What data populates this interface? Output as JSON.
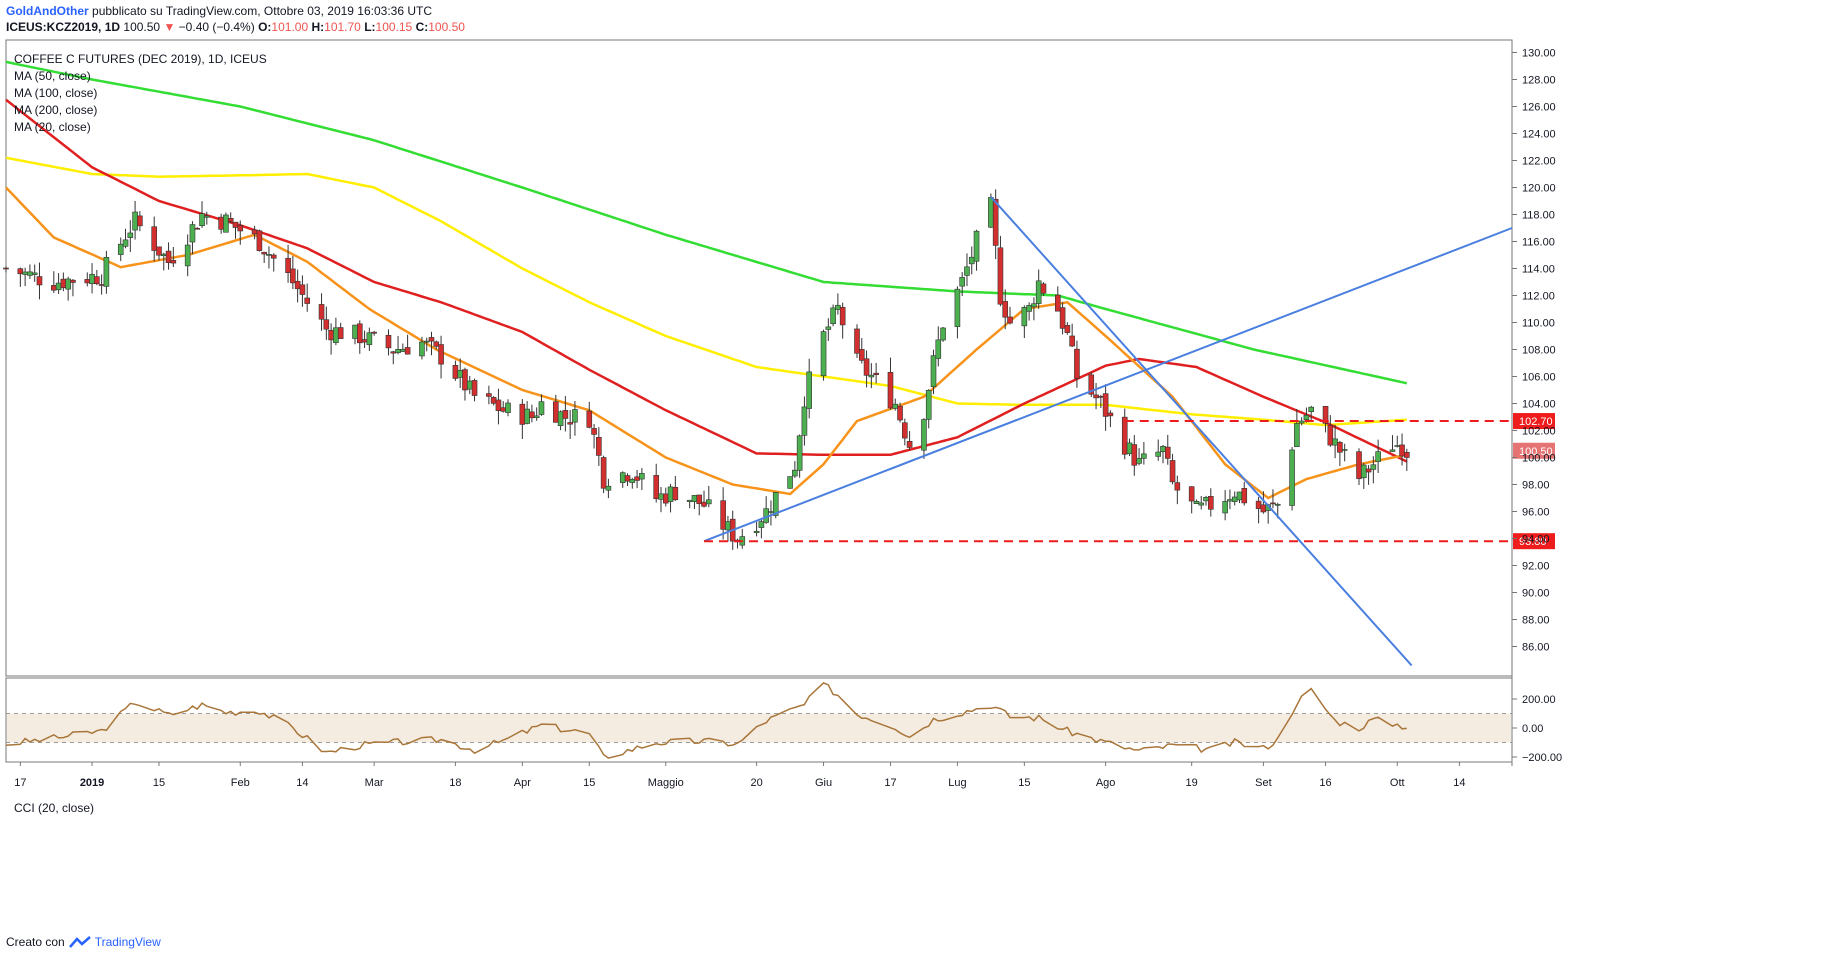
{
  "header": {
    "author": "GoldAndOther",
    "published": "pubblicato su TradingView.com, Ottobre 03, 2019 16:03:36 UTC",
    "symbol": "ICEUS:KCZ2019, 1D",
    "last": "100.50",
    "change_arrow": "▼",
    "change": "−0.40 (−0.4%)",
    "o_label": "O:",
    "o_val": "101.00",
    "h_label": "H:",
    "h_val": "101.70",
    "l_label": "L:",
    "l_val": "100.15",
    "c_label": "C:",
    "c_val": "100.50"
  },
  "legend": {
    "title": "COFFEE C FUTURES (DEC 2019), 1D, ICEUS",
    "ma50": "MA (50, close)",
    "ma100": "MA (100, close)",
    "ma200": "MA (200, close)",
    "ma20": "MA (20, close)",
    "cci": "CCI (20, close)"
  },
  "footer": {
    "created_with": "Creato con",
    "brand": "TradingView"
  },
  "colors": {
    "up": "#4caf50",
    "down": "#d32f2f",
    "ma20": "#f7931a",
    "ma50": "#e02020",
    "ma100": "#ffee00",
    "ma200": "#33dd33",
    "trend": "#4a7fe0",
    "level": "#ee1c1c",
    "cci": "#a9763a"
  },
  "chart_data": [
    {
      "type": "candlestick",
      "title": "COFFEE C FUTURES (DEC 2019), 1D, ICEUS",
      "ylim": [
        84.6,
        131.0
      ],
      "y_ticks": [
        "130.00",
        "128.00",
        "126.00",
        "124.00",
        "122.00",
        "120.00",
        "118.00",
        "116.00",
        "114.00",
        "112.00",
        "110.00",
        "108.00",
        "106.00",
        "104.00",
        "102.00",
        "100.00",
        "98.00",
        "96.00",
        "94.00",
        "92.00",
        "90.00",
        "88.00",
        "86.00"
      ],
      "x_labels": [
        "17",
        "2019",
        "15",
        "Feb",
        "14",
        "Mar",
        "18",
        "Apr",
        "15",
        "Maggio",
        "20",
        "Giu",
        "17",
        "Lug",
        "15",
        "Ago",
        "19",
        "Set",
        "16",
        "Ott",
        "14"
      ],
      "x_label_dates": [
        "2018-12-17",
        "2019-01-01",
        "2019-01-15",
        "2019-02-01",
        "2019-02-14",
        "2019-03-01",
        "2019-03-18",
        "2019-04-01",
        "2019-04-15",
        "2019-05-01",
        "2019-05-20",
        "2019-06-03",
        "2019-06-17",
        "2019-07-01",
        "2019-07-15",
        "2019-08-01",
        "2019-08-19",
        "2019-09-03",
        "2019-09-16",
        "2019-10-01",
        "2019-10-14"
      ],
      "price_labels": [
        {
          "value": 102.7,
          "text": "102.70",
          "color": "#ee1c1c"
        },
        {
          "value": 100.5,
          "text": "100.50",
          "color": "#e57373"
        },
        {
          "value": 93.8,
          "text": "93.80",
          "color": "#ee1c1c"
        }
      ],
      "close_anchors": [
        [
          "2018-12-14",
          114.0
        ],
        [
          "2018-12-24",
          113.0
        ],
        [
          "2019-01-03",
          113.5
        ],
        [
          "2019-01-08",
          116.5
        ],
        [
          "2019-01-10",
          117.5
        ],
        [
          "2019-01-17",
          114.5
        ],
        [
          "2019-01-24",
          118.0
        ],
        [
          "2019-01-29",
          117.5
        ],
        [
          "2019-02-05",
          116.0
        ],
        [
          "2019-02-12",
          113.0
        ],
        [
          "2019-02-19",
          109.5
        ],
        [
          "2019-02-26",
          109.0
        ],
        [
          "2019-03-05",
          108.0
        ],
        [
          "2019-03-11",
          108.5
        ],
        [
          "2019-03-15",
          107.5
        ],
        [
          "2019-03-22",
          104.5
        ],
        [
          "2019-03-28",
          103.5
        ],
        [
          "2019-04-03",
          103.0
        ],
        [
          "2019-04-05",
          104.0
        ],
        [
          "2019-04-10",
          103.0
        ],
        [
          "2019-04-15",
          103.0
        ],
        [
          "2019-04-18",
          98.5
        ],
        [
          "2019-04-24",
          99.0
        ],
        [
          "2019-04-29",
          97.0
        ],
        [
          "2019-05-03",
          97.5
        ],
        [
          "2019-05-09",
          96.5
        ],
        [
          "2019-05-13",
          95.0
        ],
        [
          "2019-05-16",
          94.0
        ],
        [
          "2019-05-22",
          96.0
        ],
        [
          "2019-05-28",
          99.5
        ],
        [
          "2019-05-30",
          104.5
        ],
        [
          "2019-06-03",
          109.0
        ],
        [
          "2019-06-06",
          111.0
        ],
        [
          "2019-06-10",
          107.0
        ],
        [
          "2019-06-13",
          106.0
        ],
        [
          "2019-06-18",
          104.0
        ],
        [
          "2019-06-21",
          101.0
        ],
        [
          "2019-06-24",
          103.5
        ],
        [
          "2019-06-26",
          107.0
        ],
        [
          "2019-06-28",
          110.0
        ],
        [
          "2019-07-02",
          113.0
        ],
        [
          "2019-07-05",
          116.0
        ],
        [
          "2019-07-08",
          118.5
        ],
        [
          "2019-07-10",
          112.0
        ],
        [
          "2019-07-12",
          110.0
        ],
        [
          "2019-07-16",
          111.0
        ],
        [
          "2019-07-18",
          113.0
        ],
        [
          "2019-07-22",
          111.0
        ],
        [
          "2019-07-24",
          109.0
        ],
        [
          "2019-07-26",
          106.0
        ],
        [
          "2019-07-31",
          104.0
        ],
        [
          "2019-08-05",
          101.0
        ],
        [
          "2019-08-08",
          99.5
        ],
        [
          "2019-08-13",
          100.5
        ],
        [
          "2019-08-15",
          98.0
        ],
        [
          "2019-08-20",
          96.0
        ],
        [
          "2019-08-23",
          96.5
        ],
        [
          "2019-08-28",
          97.5
        ],
        [
          "2019-09-03",
          96.0
        ],
        [
          "2019-09-06",
          96.5
        ],
        [
          "2019-09-10",
          102.5
        ],
        [
          "2019-09-13",
          103.5
        ],
        [
          "2019-09-18",
          101.0
        ],
        [
          "2019-09-23",
          98.5
        ],
        [
          "2019-09-26",
          99.5
        ],
        [
          "2019-09-30",
          101.0
        ],
        [
          "2019-10-02",
          100.9
        ],
        [
          "2019-10-03",
          100.5
        ]
      ],
      "ma20_anchors": [
        [
          "2018-12-14",
          120.0
        ],
        [
          "2018-12-24",
          116.3
        ],
        [
          "2019-01-07",
          114.1
        ],
        [
          "2019-01-21",
          115.0
        ],
        [
          "2019-02-04",
          116.5
        ],
        [
          "2019-02-15",
          114.5
        ],
        [
          "2019-02-28",
          111.0
        ],
        [
          "2019-03-14",
          108.0
        ],
        [
          "2019-04-01",
          105.0
        ],
        [
          "2019-04-15",
          103.5
        ],
        [
          "2019-05-01",
          100.0
        ],
        [
          "2019-05-15",
          98.0
        ],
        [
          "2019-05-27",
          97.3
        ],
        [
          "2019-06-03",
          99.5
        ],
        [
          "2019-06-10",
          102.7
        ],
        [
          "2019-06-24",
          104.5
        ],
        [
          "2019-07-05",
          108.0
        ],
        [
          "2019-07-15",
          111.0
        ],
        [
          "2019-07-24",
          111.5
        ],
        [
          "2019-08-01",
          109.0
        ],
        [
          "2019-08-15",
          104.5
        ],
        [
          "2019-08-26",
          99.5
        ],
        [
          "2019-09-04",
          97.0
        ],
        [
          "2019-09-12",
          98.4
        ],
        [
          "2019-09-23",
          99.5
        ],
        [
          "2019-10-03",
          100.2
        ]
      ],
      "ma50_anchors": [
        [
          "2018-12-14",
          126.5
        ],
        [
          "2019-01-01",
          121.5
        ],
        [
          "2019-01-15",
          119.0
        ],
        [
          "2019-02-01",
          117.2
        ],
        [
          "2019-02-15",
          115.5
        ],
        [
          "2019-03-01",
          113.0
        ],
        [
          "2019-03-15",
          111.5
        ],
        [
          "2019-04-01",
          109.3
        ],
        [
          "2019-04-15",
          106.5
        ],
        [
          "2019-05-01",
          103.5
        ],
        [
          "2019-05-20",
          100.3
        ],
        [
          "2019-06-03",
          100.2
        ],
        [
          "2019-06-17",
          100.2
        ],
        [
          "2019-07-01",
          101.5
        ],
        [
          "2019-07-15",
          104.0
        ],
        [
          "2019-08-01",
          106.8
        ],
        [
          "2019-08-08",
          107.3
        ],
        [
          "2019-08-20",
          106.7
        ],
        [
          "2019-09-03",
          104.5
        ],
        [
          "2019-09-16",
          102.6
        ],
        [
          "2019-10-03",
          99.7
        ]
      ],
      "ma100_anchors": [
        [
          "2018-12-14",
          122.2
        ],
        [
          "2019-01-01",
          121.0
        ],
        [
          "2019-01-15",
          120.8
        ],
        [
          "2019-02-01",
          120.9
        ],
        [
          "2019-02-15",
          121.0
        ],
        [
          "2019-03-01",
          120.0
        ],
        [
          "2019-03-15",
          117.5
        ],
        [
          "2019-04-01",
          114.0
        ],
        [
          "2019-04-15",
          111.5
        ],
        [
          "2019-05-01",
          109.0
        ],
        [
          "2019-05-20",
          106.7
        ],
        [
          "2019-06-03",
          106.0
        ],
        [
          "2019-06-17",
          105.3
        ],
        [
          "2019-07-01",
          104.0
        ],
        [
          "2019-07-15",
          103.9
        ],
        [
          "2019-08-01",
          103.9
        ],
        [
          "2019-08-19",
          103.2
        ],
        [
          "2019-09-03",
          102.8
        ],
        [
          "2019-09-16",
          102.4
        ],
        [
          "2019-10-03",
          102.8
        ]
      ],
      "ma200_anchors": [
        [
          "2018-12-14",
          129.3
        ],
        [
          "2019-01-01",
          128.0
        ],
        [
          "2019-02-01",
          126.0
        ],
        [
          "2019-03-01",
          123.5
        ],
        [
          "2019-04-01",
          120.0
        ],
        [
          "2019-05-01",
          116.5
        ],
        [
          "2019-06-03",
          113.0
        ],
        [
          "2019-07-01",
          112.3
        ],
        [
          "2019-07-22",
          112.0
        ],
        [
          "2019-08-01",
          111.0
        ],
        [
          "2019-09-01",
          108.0
        ],
        [
          "2019-10-03",
          105.5
        ]
      ],
      "trendlines": [
        {
          "from": [
            "2019-05-09",
            93.8
          ],
          "to": [
            "2019-10-25",
            117.0
          ]
        },
        {
          "from": [
            "2019-07-08",
            119.3
          ],
          "to": [
            "2019-10-04",
            84.6
          ]
        }
      ],
      "levels": [
        {
          "value": 102.7,
          "from": "2019-08-05"
        },
        {
          "value": 93.8,
          "from": "2019-05-09"
        }
      ]
    },
    {
      "type": "line",
      "title": "CCI (20, close)",
      "ylim": [
        -250,
        330
      ],
      "y_ticks": [
        "200.00",
        "0.00",
        "−200.00"
      ],
      "bands": [
        100,
        -100
      ],
      "anchors": [
        [
          "2018-12-14",
          -110
        ],
        [
          "2018-12-24",
          -70
        ],
        [
          "2019-01-03",
          -20
        ],
        [
          "2019-01-10",
          180
        ],
        [
          "2019-01-17",
          90
        ],
        [
          "2019-01-24",
          160
        ],
        [
          "2019-01-29",
          110
        ],
        [
          "2019-02-05",
          120
        ],
        [
          "2019-02-12",
          0
        ],
        [
          "2019-02-19",
          -170
        ],
        [
          "2019-02-26",
          -120
        ],
        [
          "2019-03-05",
          -100
        ],
        [
          "2019-03-15",
          -80
        ],
        [
          "2019-03-22",
          -150
        ],
        [
          "2019-03-28",
          -90
        ],
        [
          "2019-04-05",
          20
        ],
        [
          "2019-04-15",
          -40
        ],
        [
          "2019-04-18",
          -200
        ],
        [
          "2019-04-29",
          -100
        ],
        [
          "2019-05-09",
          -90
        ],
        [
          "2019-05-16",
          -110
        ],
        [
          "2019-05-22",
          50
        ],
        [
          "2019-05-30",
          160
        ],
        [
          "2019-06-03",
          300
        ],
        [
          "2019-06-06",
          230
        ],
        [
          "2019-06-10",
          100
        ],
        [
          "2019-06-18",
          10
        ],
        [
          "2019-06-21",
          -60
        ],
        [
          "2019-06-26",
          60
        ],
        [
          "2019-07-02",
          110
        ],
        [
          "2019-07-08",
          160
        ],
        [
          "2019-07-12",
          80
        ],
        [
          "2019-07-18",
          70
        ],
        [
          "2019-07-24",
          -20
        ],
        [
          "2019-07-31",
          -90
        ],
        [
          "2019-08-08",
          -160
        ],
        [
          "2019-08-15",
          -120
        ],
        [
          "2019-08-23",
          -150
        ],
        [
          "2019-08-28",
          -100
        ],
        [
          "2019-09-03",
          -140
        ],
        [
          "2019-09-06",
          -80
        ],
        [
          "2019-09-10",
          180
        ],
        [
          "2019-09-13",
          260
        ],
        [
          "2019-09-18",
          50
        ],
        [
          "2019-09-23",
          0
        ],
        [
          "2019-09-26",
          60
        ],
        [
          "2019-10-03",
          10
        ]
      ]
    }
  ]
}
